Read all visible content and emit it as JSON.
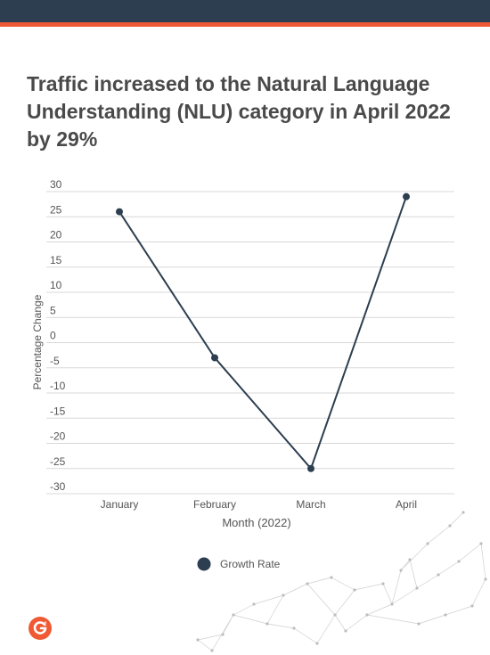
{
  "header": {
    "title": "Traffic increased to the Natural Language Understanding (NLU) category in April 2022 by 29%"
  },
  "colors": {
    "top_bar": "#2c3e4f",
    "accent": "#ef5a34",
    "series": "#2c3e4f",
    "grid": "#d9d9d9"
  },
  "chart_data": {
    "type": "line",
    "title": "Traffic increased to the Natural Language Understanding (NLU) category in April 2022 by 29%",
    "xlabel": "Month (2022)",
    "ylabel": "Percentage Change",
    "categories": [
      "January",
      "February",
      "March",
      "April"
    ],
    "series": [
      {
        "name": "Growth Rate",
        "values": [
          26,
          -3,
          -25,
          29
        ]
      }
    ],
    "ylim": [
      -30,
      30
    ],
    "yticks": [
      30,
      25,
      20,
      15,
      10,
      5,
      0,
      -5,
      -10,
      -15,
      -20,
      -25,
      -30
    ],
    "grid": true,
    "legend": "bottom-center"
  },
  "brand": {
    "logo_icon": "g2-logo-icon"
  }
}
